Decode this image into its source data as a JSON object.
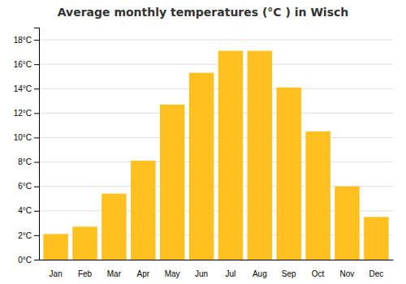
{
  "chart_data": {
    "type": "bar",
    "title": "Average monthly temperatures (°C ) in Wisch",
    "categories": [
      "Jan",
      "Feb",
      "Mar",
      "Apr",
      "May",
      "Jun",
      "Jul",
      "Aug",
      "Sep",
      "Oct",
      "Nov",
      "Dec"
    ],
    "values": [
      2.1,
      2.7,
      5.4,
      8.1,
      12.7,
      15.3,
      17.1,
      17.1,
      14.1,
      10.5,
      6.0,
      3.5
    ],
    "color": "#FFC020",
    "ylim": [
      0,
      19
    ],
    "yticks": [
      {
        "value": 0,
        "label": "0°C"
      },
      {
        "value": 2,
        "label": "2°C"
      },
      {
        "value": 4,
        "label": "4°C"
      },
      {
        "value": 6,
        "label": "6°C"
      },
      {
        "value": 8,
        "label": "8°C"
      },
      {
        "value": 10,
        "label": "10°C"
      },
      {
        "value": 12,
        "label": "12°C"
      },
      {
        "value": 14,
        "label": "14°C"
      },
      {
        "value": 16,
        "label": "16°C"
      },
      {
        "value": 18,
        "label": "18°C"
      }
    ],
    "grid": true
  }
}
